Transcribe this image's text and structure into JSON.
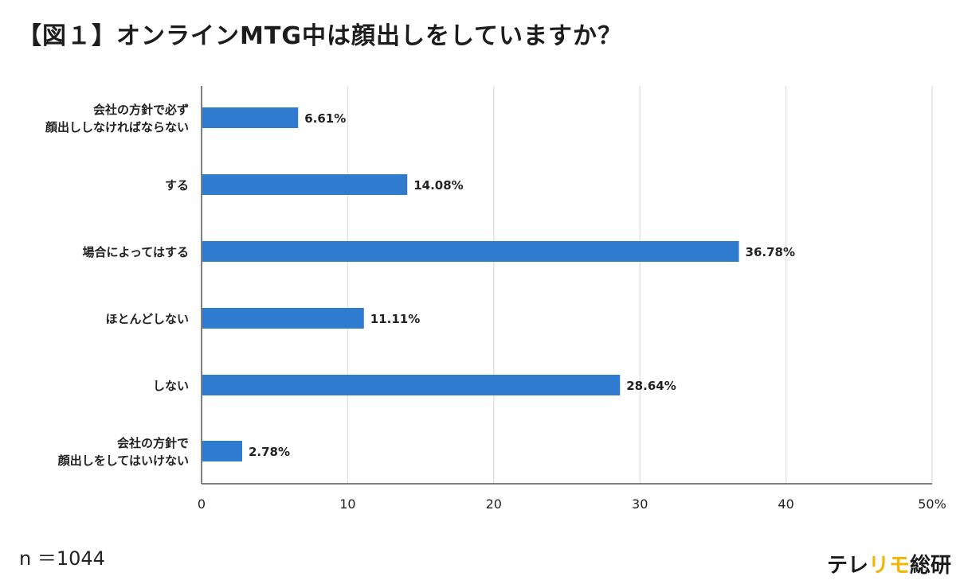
{
  "title": "【図１】オンラインMTG中は顔出しをしていますか？",
  "sample_size": "n ＝1044",
  "brand": {
    "part1": "テレ",
    "part2": "リモ",
    "part3": "総研",
    "accent_color": "#f4b400"
  },
  "colors": {
    "bar": "#2f7bd0",
    "grid": "#e3e3e3",
    "axis": "#555555"
  },
  "chart_data": {
    "type": "bar",
    "orientation": "horizontal",
    "title": "【図１】オンラインMTG中は顔出しをしていますか？",
    "categories": [
      [
        "会社の方針で必ず",
        "顔出ししなければならない"
      ],
      [
        "する"
      ],
      [
        "場合によってはする"
      ],
      [
        "ほとんどしない"
      ],
      [
        "しない"
      ],
      [
        "会社の方針で",
        "顔出しをしてはいけない"
      ]
    ],
    "values": [
      6.61,
      14.08,
      36.78,
      11.11,
      28.64,
      2.78
    ],
    "value_labels": [
      "6.61%",
      "14.08%",
      "36.78%",
      "11.11%",
      "28.64%",
      "2.78%"
    ],
    "xlim": [
      0,
      50
    ],
    "xticks": [
      0,
      10,
      20,
      30,
      40,
      50
    ],
    "xtick_labels": [
      "0",
      "10",
      "20",
      "30",
      "40",
      "50%"
    ],
    "grid": true,
    "legend": "none"
  }
}
